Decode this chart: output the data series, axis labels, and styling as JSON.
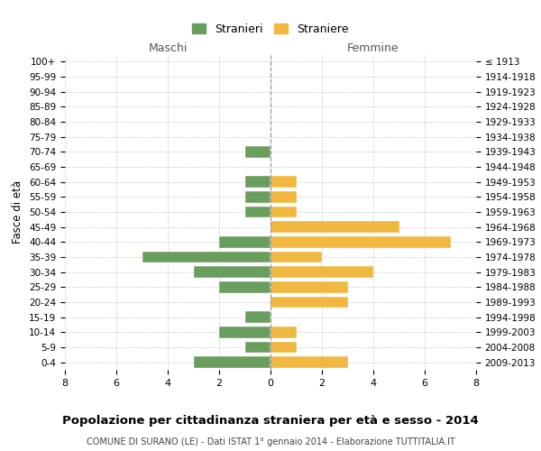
{
  "age_groups": [
    "100+",
    "95-99",
    "90-94",
    "85-89",
    "80-84",
    "75-79",
    "70-74",
    "65-69",
    "60-64",
    "55-59",
    "50-54",
    "45-49",
    "40-44",
    "35-39",
    "30-34",
    "25-29",
    "20-24",
    "15-19",
    "10-14",
    "5-9",
    "0-4"
  ],
  "birth_years": [
    "≤ 1913",
    "1914-1918",
    "1919-1923",
    "1924-1928",
    "1929-1933",
    "1934-1938",
    "1939-1943",
    "1944-1948",
    "1949-1953",
    "1954-1958",
    "1959-1963",
    "1964-1968",
    "1969-1973",
    "1974-1978",
    "1979-1983",
    "1984-1988",
    "1989-1993",
    "1994-1998",
    "1999-2003",
    "2004-2008",
    "2009-2013"
  ],
  "maschi": [
    0,
    0,
    0,
    0,
    0,
    0,
    1,
    0,
    1,
    1,
    1,
    0,
    2,
    5,
    3,
    2,
    0,
    1,
    2,
    1,
    3
  ],
  "femmine": [
    0,
    0,
    0,
    0,
    0,
    0,
    0,
    0,
    1,
    1,
    1,
    5,
    7,
    2,
    4,
    3,
    3,
    0,
    1,
    1,
    3
  ],
  "color_maschi": "#6a9e5e",
  "color_femmine": "#f0b840",
  "title": "Popolazione per cittadinanza straniera per età e sesso - 2014",
  "subtitle": "COMUNE DI SURANO (LE) - Dati ISTAT 1° gennaio 2014 - Elaborazione TUTTITALIA.IT",
  "xlabel_maschi": "Maschi",
  "xlabel_femmine": "Femmine",
  "ylabel_left": "Fasce di età",
  "legend_maschi": "Stranieri",
  "legend_femmine": "Straniere",
  "xlim": 8,
  "background_color": "#ffffff",
  "grid_color": "#cccccc"
}
